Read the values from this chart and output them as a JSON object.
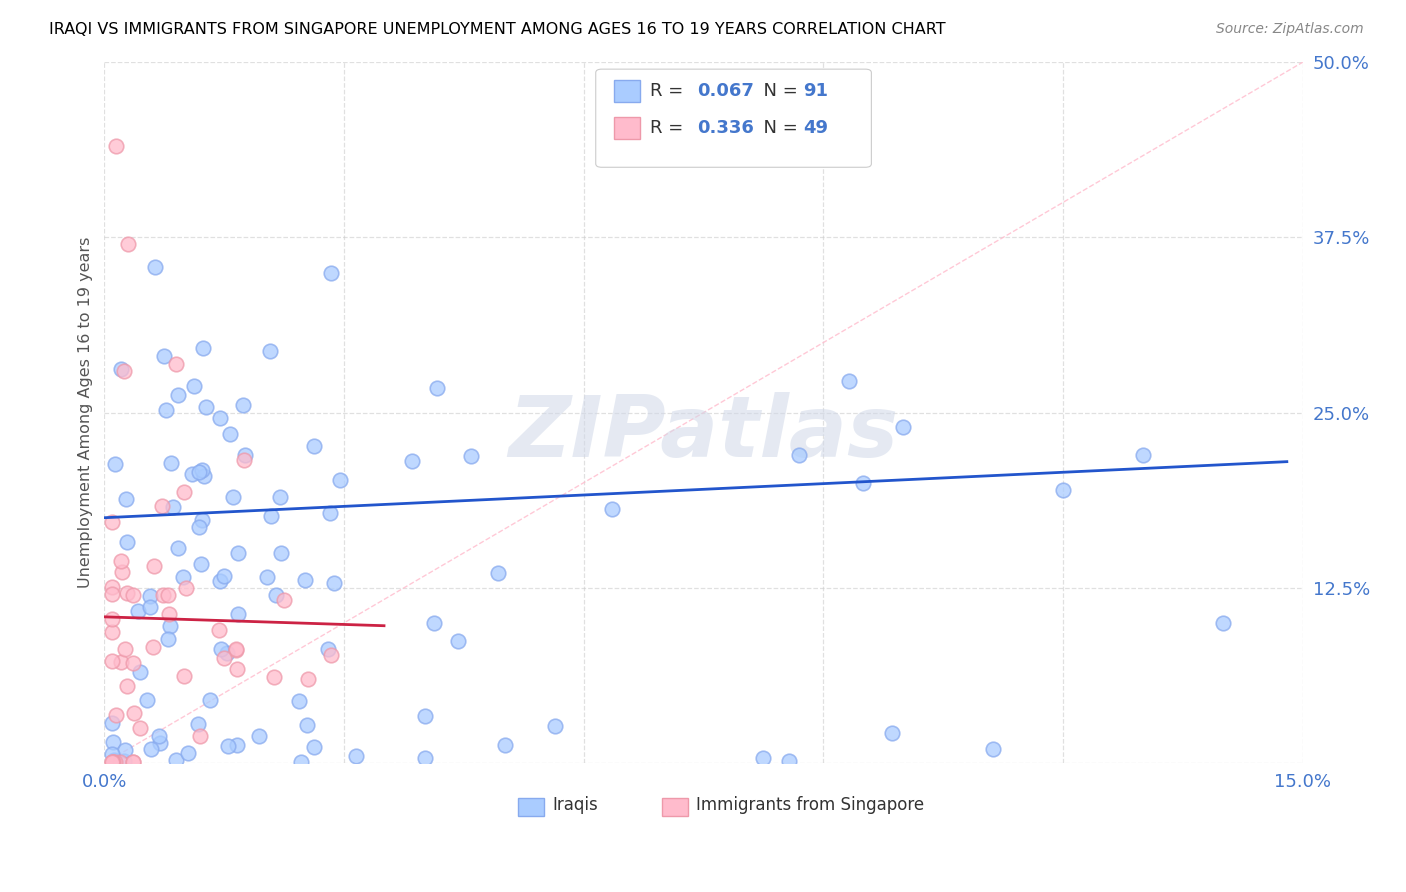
{
  "title": "IRAQI VS IMMIGRANTS FROM SINGAPORE UNEMPLOYMENT AMONG AGES 16 TO 19 YEARS CORRELATION CHART",
  "source": "Source: ZipAtlas.com",
  "ylabel": "Unemployment Among Ages 16 to 19 years",
  "xlim": [
    0.0,
    0.15
  ],
  "ylim": [
    0.0,
    0.5
  ],
  "xticks": [
    0.0,
    0.03,
    0.06,
    0.09,
    0.12,
    0.15
  ],
  "xticklabels": [
    "0.0%",
    "",
    "",
    "",
    "",
    "15.0%"
  ],
  "yticks": [
    0.0,
    0.125,
    0.25,
    0.375,
    0.5
  ],
  "yticklabels": [
    "",
    "12.5%",
    "25.0%",
    "37.5%",
    "50.0%"
  ],
  "iraqis_color_face": "#aaccff",
  "iraqis_color_edge": "#88aaee",
  "singapore_color_face": "#ffbbcc",
  "singapore_color_edge": "#ee99aa",
  "iraqis_line_color": "#2255cc",
  "singapore_line_color": "#cc2244",
  "diagonal_color": "#ffbbcc",
  "watermark": "ZIPatlas",
  "background_color": "#ffffff",
  "grid_color": "#cccccc"
}
